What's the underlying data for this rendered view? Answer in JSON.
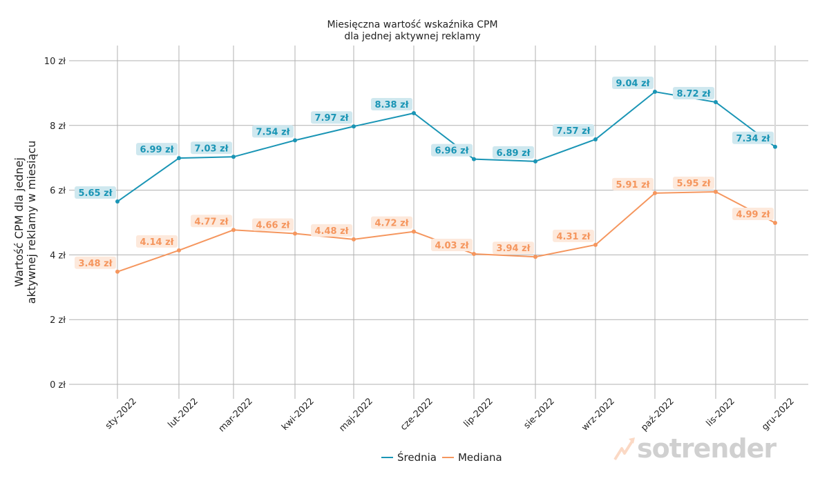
{
  "chart_data": {
    "type": "line",
    "title": "Miesięczna wartość wskaźnika CPM\ndla jednej aktywnej reklamy",
    "title_lines": [
      "Miesięczna wartość wskaźnika CPM",
      "dla jednej aktywnej reklamy"
    ],
    "xlabel": "",
    "ylabel": "Wartość CPM dla jednej\naktywnej reklamy w miesiącu",
    "ylabel_lines": [
      "Wartość CPM dla jednej",
      "aktywnej reklamy w miesiącu"
    ],
    "ylim": [
      0,
      10.5
    ],
    "yticks": [
      0,
      2,
      4,
      6,
      8,
      10
    ],
    "ytick_labels": [
      "0 zł",
      "2 zł",
      "4 zł",
      "6 zł",
      "8 zł",
      "10 zł"
    ],
    "grid": true,
    "legend_position": "bottom-center",
    "categories": [
      "sty-2022",
      "lut-2022",
      "mar-2022",
      "kwi-2022",
      "maj-2022",
      "cze-2022",
      "lip-2022",
      "sie-2022",
      "wrz-2022",
      "paź-2022",
      "lis-2022",
      "gru-2022"
    ],
    "series": [
      {
        "name": "Średnia",
        "color": "#1a95b5",
        "label_bg": "#cfe8ef",
        "values": [
          5.65,
          6.99,
          7.03,
          7.54,
          7.97,
          8.38,
          6.96,
          6.89,
          7.57,
          9.04,
          8.72,
          7.34
        ],
        "labels": [
          "5.65 zł",
          "6.99 zł",
          "7.03 zł",
          "7.54 zł",
          "7.97 zł",
          "8.38 zł",
          "6.96 zł",
          "6.89 zł",
          "7.57 zł",
          "9.04 zł",
          "8.72 zł",
          "7.34 zł"
        ]
      },
      {
        "name": "Mediana",
        "color": "#f5965e",
        "label_bg": "#fde9dc",
        "values": [
          3.48,
          4.14,
          4.77,
          4.66,
          4.48,
          4.72,
          4.03,
          3.94,
          4.31,
          5.91,
          5.95,
          4.99
        ],
        "labels": [
          "3.48 zł",
          "4.14 zł",
          "4.77 zł",
          "4.66 zł",
          "4.48 zł",
          "4.72 zł",
          "4.03 zł",
          "3.94 zł",
          "4.31 zł",
          "5.91 zł",
          "5.95 zł",
          "4.99 zł"
        ]
      }
    ]
  },
  "legend": {
    "items": [
      {
        "label": "Średnia",
        "color": "#1a95b5"
      },
      {
        "label": "Mediana",
        "color": "#f5965e"
      }
    ]
  },
  "watermark": {
    "text": "sotrender"
  }
}
